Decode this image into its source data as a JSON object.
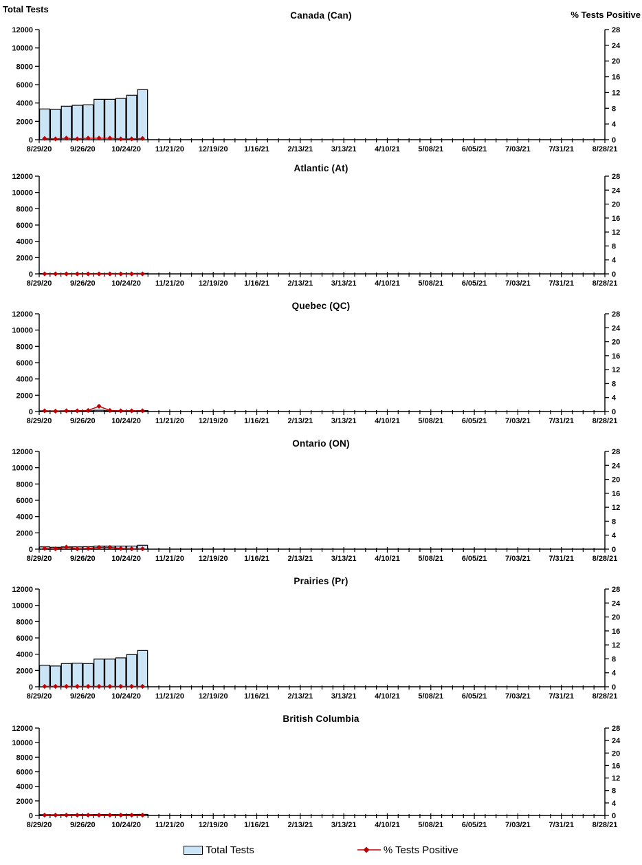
{
  "page": {
    "left_axis_title": "Total Tests",
    "right_axis_title": "% Tests Positive",
    "colors": {
      "bar_fill": "#cbe5f7",
      "bar_stroke": "#000000",
      "line": "#c00000",
      "axis": "#000000"
    },
    "left_axis": {
      "min": 0,
      "max": 12000,
      "step": 2000
    },
    "right_axis": {
      "min": 0,
      "max": 28,
      "step": 4
    },
    "weeks_total": 52,
    "x_major_tick_labels": [
      "8/29/20",
      "9/26/20",
      "10/24/20",
      "11/21/20",
      "12/19/20",
      "1/16/21",
      "2/13/21",
      "3/13/21",
      "4/10/21",
      "5/08/21",
      "6/05/21",
      "7/03/21",
      "7/31/21",
      "8/28/21"
    ],
    "legend": [
      {
        "label": "Total Tests",
        "type": "bar"
      },
      {
        "label": "% Tests Positive",
        "type": "line"
      }
    ]
  },
  "chart_data": [
    {
      "type": "bar",
      "title": "Canada (Can)",
      "categories": [
        "8/29/20",
        "9/05/20",
        "9/12/20",
        "9/19/20",
        "9/26/20",
        "10/03/20",
        "10/10/20",
        "10/17/20",
        "10/24/20",
        "10/31/20"
      ],
      "xlabel": "",
      "ylabel": "Total Tests",
      "ylabel_right": "% Tests Positive",
      "ylim_left": [
        0,
        12000
      ],
      "ylim_right": [
        0,
        28
      ],
      "series": [
        {
          "name": "Total Tests",
          "axis": "left",
          "type": "bar",
          "values": [
            3350,
            3300,
            3650,
            3750,
            3800,
            4400,
            4400,
            4500,
            4850,
            5450
          ]
        },
        {
          "name": "% Tests Positive",
          "axis": "right",
          "type": "line",
          "values": [
            0.3,
            0.2,
            0.4,
            0.2,
            0.4,
            0.4,
            0.4,
            0.2,
            0.2,
            0.3
          ]
        }
      ]
    },
    {
      "type": "bar",
      "title": "Atlantic (At)",
      "categories": [
        "8/29/20",
        "9/05/20",
        "9/12/20",
        "9/19/20",
        "9/26/20",
        "10/03/20",
        "10/10/20",
        "10/17/20",
        "10/24/20",
        "10/31/20"
      ],
      "xlabel": "",
      "ylabel": "Total Tests",
      "ylabel_right": "% Tests Positive",
      "ylim_left": [
        0,
        12000
      ],
      "ylim_right": [
        0,
        28
      ],
      "series": [
        {
          "name": "Total Tests",
          "axis": "left",
          "type": "bar",
          "values": [
            40,
            35,
            40,
            45,
            40,
            45,
            50,
            45,
            50,
            55
          ]
        },
        {
          "name": "% Tests Positive",
          "axis": "right",
          "type": "line",
          "values": [
            0,
            0,
            0,
            0,
            0,
            0,
            0,
            0,
            0,
            0
          ]
        }
      ]
    },
    {
      "type": "bar",
      "title": "Quebec (QC)",
      "categories": [
        "8/29/20",
        "9/05/20",
        "9/12/20",
        "9/19/20",
        "9/26/20",
        "10/03/20",
        "10/10/20",
        "10/17/20",
        "10/24/20",
        "10/31/20"
      ],
      "xlabel": "",
      "ylabel": "Total Tests",
      "ylabel_right": "% Tests Positive",
      "ylim_left": [
        0,
        12000
      ],
      "ylim_right": [
        0,
        28
      ],
      "series": [
        {
          "name": "Total Tests",
          "axis": "left",
          "type": "bar",
          "values": [
            90,
            85,
            95,
            100,
            95,
            160,
            105,
            95,
            100,
            110
          ]
        },
        {
          "name": "% Tests Positive",
          "axis": "right",
          "type": "line",
          "values": [
            0.2,
            0.1,
            0.2,
            0.2,
            0.3,
            1.5,
            0.3,
            0.2,
            0.2,
            0.2
          ]
        }
      ]
    },
    {
      "type": "bar",
      "title": "Ontario (ON)",
      "categories": [
        "8/29/20",
        "9/05/20",
        "9/12/20",
        "9/19/20",
        "9/26/20",
        "10/03/20",
        "10/10/20",
        "10/17/20",
        "10/24/20",
        "10/31/20"
      ],
      "xlabel": "",
      "ylabel": "Total Tests",
      "ylabel_right": "% Tests Positive",
      "ylim_left": [
        0,
        12000
      ],
      "ylim_right": [
        0,
        28
      ],
      "series": [
        {
          "name": "Total Tests",
          "axis": "left",
          "type": "bar",
          "values": [
            280,
            230,
            280,
            280,
            300,
            380,
            380,
            380,
            380,
            480
          ]
        },
        {
          "name": "% Tests Positive",
          "axis": "right",
          "type": "line",
          "values": [
            0.2,
            0.1,
            0.6,
            0.1,
            0.2,
            0.5,
            0.5,
            0.2,
            0.1,
            0.1
          ]
        }
      ]
    },
    {
      "type": "bar",
      "title": "Prairies (Pr)",
      "categories": [
        "8/29/20",
        "9/05/20",
        "9/12/20",
        "9/19/20",
        "9/26/20",
        "10/03/20",
        "10/10/20",
        "10/17/20",
        "10/24/20",
        "10/31/20"
      ],
      "xlabel": "",
      "ylabel": "Total Tests",
      "ylabel_right": "% Tests Positive",
      "ylim_left": [
        0,
        12000
      ],
      "ylim_right": [
        0,
        28
      ],
      "series": [
        {
          "name": "Total Tests",
          "axis": "left",
          "type": "bar",
          "values": [
            2650,
            2550,
            2850,
            2900,
            2850,
            3400,
            3400,
            3550,
            3950,
            4450
          ]
        },
        {
          "name": "% Tests Positive",
          "axis": "right",
          "type": "line",
          "values": [
            0.1,
            0.1,
            0.1,
            0.1,
            0.1,
            0.1,
            0.1,
            0.1,
            0.1,
            0.1
          ]
        }
      ]
    },
    {
      "type": "bar",
      "title": "British Columbia",
      "categories": [
        "8/29/20",
        "9/05/20",
        "9/12/20",
        "9/19/20",
        "9/26/20",
        "10/03/20",
        "10/10/20",
        "10/17/20",
        "10/24/20",
        "10/31/20"
      ],
      "xlabel": "",
      "ylabel": "Total Tests",
      "ylabel_right": "% Tests Positive",
      "ylim_left": [
        0,
        12000
      ],
      "ylim_right": [
        0,
        28
      ],
      "series": [
        {
          "name": "Total Tests",
          "axis": "left",
          "type": "bar",
          "values": [
            110,
            100,
            115,
            120,
            115,
            125,
            125,
            125,
            135,
            145
          ]
        },
        {
          "name": "% Tests Positive",
          "axis": "right",
          "type": "line",
          "values": [
            0.1,
            0.1,
            0.1,
            0.1,
            0.1,
            0.1,
            0.1,
            0.1,
            0.1,
            0.1
          ]
        }
      ]
    }
  ]
}
